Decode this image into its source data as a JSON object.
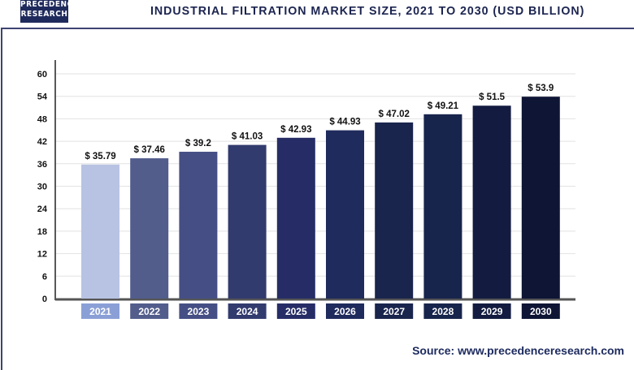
{
  "logo": {
    "line1": "PRECEDENCE",
    "line2": "RESEARCH"
  },
  "title": "INDUSTRIAL FILTRATION MARKET SIZE, 2021 TO 2030 (USD BILLION)",
  "source": "Source: www.precedenceresearch.com",
  "chart_data": {
    "type": "bar",
    "title": "INDUSTRIAL FILTRATION MARKET SIZE, 2021 TO 2030 (USD BILLION)",
    "categories": [
      "2021",
      "2022",
      "2023",
      "2024",
      "2025",
      "2026",
      "2027",
      "2028",
      "2029",
      "2030"
    ],
    "values": [
      35.79,
      37.46,
      39.2,
      41.03,
      42.93,
      44.93,
      47.02,
      49.21,
      51.5,
      53.9
    ],
    "data_labels": [
      "$ 35.79",
      "$ 37.46",
      "$ 39.2",
      "$ 41.03",
      "$ 42.93",
      "$ 44.93",
      "$ 47.02",
      "$ 49.21",
      "$ 51.5",
      "$ 53.9"
    ],
    "yticks": [
      "0",
      "6",
      "12",
      "18",
      "24",
      "30",
      "36",
      "42",
      "48",
      "54",
      "60"
    ],
    "ylim": [
      0,
      60
    ],
    "grid": true,
    "bar_colors": [
      "#b8c3e3",
      "#525d8c",
      "#454f85",
      "#323b6e",
      "#262d66",
      "#1f2b5c",
      "#1a254d",
      "#17244c",
      "#131c40",
      "#0e1535"
    ],
    "label_colors": [
      "#8a9fd6",
      "#525d8c",
      "#454f85",
      "#323b6e",
      "#262d66",
      "#1f2b5c",
      "#1a254d",
      "#17244c",
      "#131c40",
      "#0e1535"
    ]
  }
}
